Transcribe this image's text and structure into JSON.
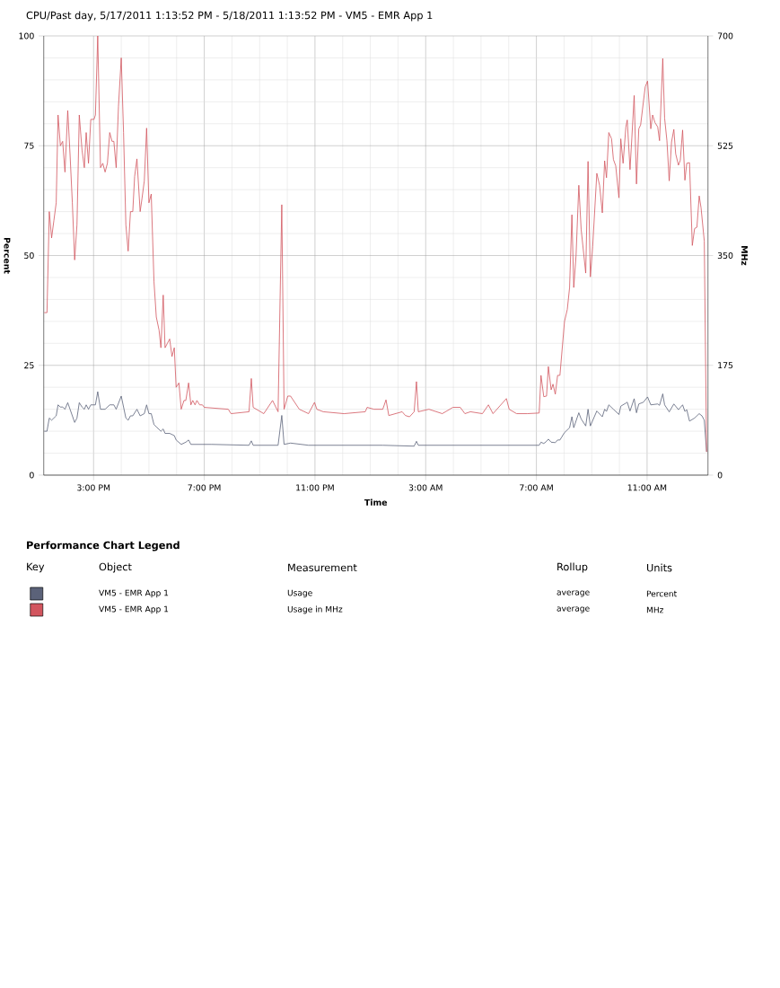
{
  "chart_data": {
    "type": "line",
    "title": "CPU/Past day, 5/17/2011 1:13:52 PM - 5/18/2011 1:13:52 PM - VM5 - EMR App 1",
    "xlabel": "Time",
    "ylabel": "Percent",
    "y2label": "MHz",
    "legend_title": "Performance Chart Legend",
    "xlim": [
      "2011-05-17T13:12",
      "2011-05-18T13:12"
    ],
    "xticks": [
      {
        "value": "2011-05-17T15:00",
        "label": "3:00 PM"
      },
      {
        "value": "2011-05-17T19:00",
        "label": "7:00 PM"
      },
      {
        "value": "2011-05-17T23:00",
        "label": "11:00 PM"
      },
      {
        "value": "2011-05-18T03:00",
        "label": "3:00 AM"
      },
      {
        "value": "2011-05-18T07:00",
        "label": "7:00 AM"
      },
      {
        "value": "2011-05-18T11:00",
        "label": "11:00 AM"
      }
    ],
    "ylim": [
      0,
      100
    ],
    "yticks": [
      0,
      25,
      50,
      75,
      100
    ],
    "y2lim": [
      0,
      700
    ],
    "y2ticks": [
      0,
      175,
      350,
      525,
      700
    ],
    "grid": true,
    "series": [
      {
        "color": "#5b6279",
        "x": [
          "2011-05-17T13:13",
          "2011-05-17T13:19",
          "2011-05-17T13:24",
          "2011-05-17T13:29",
          "2011-05-17T13:39",
          "2011-05-17T13:43",
          "2011-05-17T13:48",
          "2011-05-17T13:53",
          "2011-05-17T13:58",
          "2011-05-17T14:04",
          "2011-05-17T14:09",
          "2011-05-17T14:19",
          "2011-05-17T14:24",
          "2011-05-17T14:29",
          "2011-05-17T14:35",
          "2011-05-17T14:40",
          "2011-05-17T14:44",
          "2011-05-17T14:49",
          "2011-05-17T14:54",
          "2011-05-17T15:04",
          "2011-05-17T15:09",
          "2011-05-17T15:15",
          "2011-05-17T15:25",
          "2011-05-17T15:35",
          "2011-05-17T15:44",
          "2011-05-17T15:49",
          "2011-05-17T16:00",
          "2011-05-17T16:10",
          "2011-05-17T16:15",
          "2011-05-17T16:20",
          "2011-05-17T16:25",
          "2011-05-17T16:34",
          "2011-05-17T16:41",
          "2011-05-17T16:50",
          "2011-05-17T16:55",
          "2011-05-17T17:00",
          "2011-05-17T17:05",
          "2011-05-17T17:11",
          "2011-05-17T17:16",
          "2011-05-17T17:26",
          "2011-05-17T17:31",
          "2011-05-17T17:35",
          "2011-05-17T17:45",
          "2011-05-17T17:55",
          "2011-05-17T17:59",
          "2011-05-17T18:10",
          "2011-05-17T18:20",
          "2011-05-17T18:26",
          "2011-05-17T18:31",
          "2011-05-17T18:50",
          "2011-05-17T19:16",
          "2011-05-17T20:37",
          "2011-05-17T20:42",
          "2011-05-17T20:46",
          "2011-05-17T21:40",
          "2011-05-17T21:48",
          "2011-05-17T21:53",
          "2011-05-17T22:07",
          "2011-05-17T22:46",
          "2011-05-18T01:27",
          "2011-05-18T02:35",
          "2011-05-18T02:40",
          "2011-05-18T02:44",
          "2011-05-18T07:06",
          "2011-05-18T07:10",
          "2011-05-18T07:16",
          "2011-05-18T07:22",
          "2011-05-18T07:26",
          "2011-05-18T07:32",
          "2011-05-18T07:41",
          "2011-05-18T07:46",
          "2011-05-18T07:51",
          "2011-05-18T08:01",
          "2011-05-18T08:12",
          "2011-05-18T08:17",
          "2011-05-18T08:21",
          "2011-05-18T08:32",
          "2011-05-18T08:37",
          "2011-05-18T08:47",
          "2011-05-18T08:52",
          "2011-05-18T08:57",
          "2011-05-18T09:11",
          "2011-05-18T09:23",
          "2011-05-18T09:28",
          "2011-05-18T09:32",
          "2011-05-18T09:37",
          "2011-05-18T09:47",
          "2011-05-18T09:59",
          "2011-05-18T10:03",
          "2011-05-18T10:14",
          "2011-05-18T10:17",
          "2011-05-18T10:23",
          "2011-05-18T10:32",
          "2011-05-18T10:37",
          "2011-05-18T10:42",
          "2011-05-18T10:52",
          "2011-05-18T11:01",
          "2011-05-18T11:08",
          "2011-05-18T11:23",
          "2011-05-18T11:27",
          "2011-05-18T11:34",
          "2011-05-18T11:38",
          "2011-05-18T11:48",
          "2011-05-18T11:58",
          "2011-05-18T12:08",
          "2011-05-18T12:17",
          "2011-05-18T12:22",
          "2011-05-18T12:26",
          "2011-05-18T12:32",
          "2011-05-18T12:43",
          "2011-05-18T12:53",
          "2011-05-18T12:59",
          "2011-05-18T13:04",
          "2011-05-18T13:09"
        ],
        "values": [
          10,
          10,
          13,
          12.5,
          13.5,
          16,
          15.5,
          15.5,
          15,
          16.5,
          15,
          12,
          13,
          16.5,
          15.5,
          15,
          16,
          15,
          16,
          16,
          19,
          15,
          15,
          16,
          16,
          15,
          18,
          13,
          12.5,
          13.5,
          13.5,
          15,
          13.5,
          14,
          16,
          14,
          14,
          11.5,
          11,
          10,
          10.5,
          9.5,
          9.5,
          9,
          8,
          7,
          7.5,
          8,
          7,
          7,
          7,
          6.8,
          7.8,
          6.8,
          6.8,
          13.6,
          7,
          7.3,
          6.8,
          6.8,
          6.6,
          7.7,
          6.8,
          6.8,
          7.5,
          7.2,
          7.7,
          8.2,
          7.5,
          7.4,
          8,
          8,
          9.7,
          10.8,
          13.3,
          10.8,
          14.2,
          12.8,
          11.2,
          15,
          11.2,
          14.6,
          13.3,
          15,
          14.5,
          16,
          15,
          13.8,
          15.7,
          16.4,
          16.6,
          14.6,
          17.4,
          14.2,
          16.2,
          16.6,
          17.8,
          16,
          16.2,
          15.9,
          18.5,
          16,
          14.4,
          16.2,
          14.9,
          16,
          14.5,
          14.9,
          12.3,
          13,
          14,
          13.5,
          12.5,
          5.3
        ]
      },
      {
        "color": "#d2555e",
        "axis": "y2",
        "x": [
          "2011-05-17T13:13",
          "2011-05-17T13:19",
          "2011-05-17T13:24",
          "2011-05-17T13:29",
          "2011-05-17T13:34",
          "2011-05-17T13:39",
          "2011-05-17T13:43",
          "2011-05-17T13:48",
          "2011-05-17T13:53",
          "2011-05-17T13:58",
          "2011-05-17T14:04",
          "2011-05-17T14:09",
          "2011-05-17T14:14",
          "2011-05-17T14:19",
          "2011-05-17T14:24",
          "2011-05-17T14:29",
          "2011-05-17T14:35",
          "2011-05-17T14:40",
          "2011-05-17T14:44",
          "2011-05-17T14:49",
          "2011-05-17T14:54",
          "2011-05-17T15:01",
          "2011-05-17T15:04",
          "2011-05-17T15:09",
          "2011-05-17T15:15",
          "2011-05-17T15:20",
          "2011-05-17T15:25",
          "2011-05-17T15:30",
          "2011-05-17T15:35",
          "2011-05-17T15:40",
          "2011-05-17T15:44",
          "2011-05-17T15:49",
          "2011-05-17T15:54",
          "2011-05-17T16:00",
          "2011-05-17T16:05",
          "2011-05-17T16:10",
          "2011-05-17T16:15",
          "2011-05-17T16:20",
          "2011-05-17T16:25",
          "2011-05-17T16:29",
          "2011-05-17T16:34",
          "2011-05-17T16:41",
          "2011-05-17T16:45",
          "2011-05-17T16:50",
          "2011-05-17T16:55",
          "2011-05-17T17:00",
          "2011-05-17T17:05",
          "2011-05-17T17:11",
          "2011-05-17T17:16",
          "2011-05-17T17:22",
          "2011-05-17T17:26",
          "2011-05-17T17:31",
          "2011-05-17T17:35",
          "2011-05-17T17:40",
          "2011-05-17T17:45",
          "2011-05-17T17:50",
          "2011-05-17T17:55",
          "2011-05-17T17:59",
          "2011-05-17T18:05",
          "2011-05-17T18:10",
          "2011-05-17T18:16",
          "2011-05-17T18:20",
          "2011-05-17T18:26",
          "2011-05-17T18:31",
          "2011-05-17T18:35",
          "2011-05-17T18:40",
          "2011-05-17T18:44",
          "2011-05-17T18:50",
          "2011-05-17T18:56",
          "2011-05-17T19:00",
          "2011-05-17T19:52",
          "2011-05-17T19:58",
          "2011-05-17T20:37",
          "2011-05-17T20:42",
          "2011-05-17T20:46",
          "2011-05-17T21:09",
          "2011-05-17T21:28",
          "2011-05-17T21:40",
          "2011-05-17T21:48",
          "2011-05-17T21:53",
          "2011-05-17T22:01",
          "2011-05-17T22:07",
          "2011-05-17T22:26",
          "2011-05-17T22:46",
          "2011-05-17T22:59",
          "2011-05-17T23:04",
          "2011-05-17T23:18",
          "2011-05-18T00:03",
          "2011-05-18T00:49",
          "2011-05-18T00:53",
          "2011-05-18T01:08",
          "2011-05-18T01:27",
          "2011-05-18T01:34",
          "2011-05-18T01:40",
          "2011-05-18T02:09",
          "2011-05-18T02:16",
          "2011-05-18T02:25",
          "2011-05-18T02:35",
          "2011-05-18T02:40",
          "2011-05-18T02:44",
          "2011-05-18T03:07",
          "2011-05-18T03:36",
          "2011-05-18T03:59",
          "2011-05-18T04:15",
          "2011-05-18T04:25",
          "2011-05-18T04:37",
          "2011-05-18T05:03",
          "2011-05-18T05:16",
          "2011-05-18T05:26",
          "2011-05-18T05:55",
          "2011-05-18T06:01",
          "2011-05-18T06:17",
          "2011-05-18T06:40",
          "2011-05-18T07:06",
          "2011-05-18T07:10",
          "2011-05-18T07:16",
          "2011-05-18T07:22",
          "2011-05-18T07:26",
          "2011-05-18T07:32",
          "2011-05-18T07:36",
          "2011-05-18T07:41",
          "2011-05-18T07:46",
          "2011-05-18T07:51",
          "2011-05-18T08:01",
          "2011-05-18T08:07",
          "2011-05-18T08:12",
          "2011-05-18T08:17",
          "2011-05-18T08:21",
          "2011-05-18T08:26",
          "2011-05-18T08:32",
          "2011-05-18T08:37",
          "2011-05-18T08:47",
          "2011-05-18T08:52",
          "2011-05-18T08:57",
          "2011-05-18T09:02",
          "2011-05-18T09:11",
          "2011-05-18T09:17",
          "2011-05-18T09:23",
          "2011-05-18T09:28",
          "2011-05-18T09:32",
          "2011-05-18T09:37",
          "2011-05-18T09:43",
          "2011-05-18T09:47",
          "2011-05-18T09:52",
          "2011-05-18T09:59",
          "2011-05-18T10:03",
          "2011-05-18T10:08",
          "2011-05-18T10:14",
          "2011-05-18T10:17",
          "2011-05-18T10:23",
          "2011-05-18T10:27",
          "2011-05-18T10:32",
          "2011-05-18T10:37",
          "2011-05-18T10:42",
          "2011-05-18T10:46",
          "2011-05-18T10:52",
          "2011-05-18T10:56",
          "2011-05-18T11:01",
          "2011-05-18T11:08",
          "2011-05-18T11:12",
          "2011-05-18T11:17",
          "2011-05-18T11:23",
          "2011-05-18T11:27",
          "2011-05-18T11:34",
          "2011-05-18T11:38",
          "2011-05-18T11:43",
          "2011-05-18T11:48",
          "2011-05-18T11:53",
          "2011-05-18T11:58",
          "2011-05-18T12:02",
          "2011-05-18T12:08",
          "2011-05-18T12:12",
          "2011-05-18T12:17",
          "2011-05-18T12:22",
          "2011-05-18T12:26",
          "2011-05-18T12:32",
          "2011-05-18T12:38",
          "2011-05-18T12:43",
          "2011-05-18T12:48",
          "2011-05-18T12:53",
          "2011-05-18T12:57",
          "2011-05-18T13:04",
          "2011-05-18T13:09"
        ],
        "values": [
          259,
          259,
          420,
          378,
          406,
          434,
          574,
          525,
          532,
          483,
          581,
          511,
          434,
          343,
          399,
          574,
          518,
          490,
          546,
          497,
          567,
          567,
          574,
          700,
          490,
          497,
          483,
          497,
          546,
          532,
          532,
          490,
          588,
          665,
          546,
          399,
          357,
          420,
          420,
          476,
          504,
          420,
          441,
          469,
          553,
          434,
          448,
          308,
          252,
          231,
          203,
          287,
          203,
          210,
          217,
          189,
          203,
          140,
          147,
          105,
          119,
          119,
          147,
          112,
          119,
          112,
          119,
          112,
          112,
          108,
          105,
          98,
          101,
          154,
          108,
          98,
          119,
          101,
          431,
          105,
          126,
          126,
          105,
          98,
          116,
          105,
          101,
          98,
          101,
          108,
          105,
          105,
          120,
          95,
          101,
          95,
          93,
          101,
          149,
          101,
          105,
          98,
          108,
          108,
          98,
          101,
          98,
          112,
          98,
          122,
          105,
          98,
          98,
          99,
          159,
          125,
          126,
          173,
          136,
          145,
          129,
          159,
          159,
          245,
          264,
          299,
          415,
          299,
          350,
          462,
          392,
          322,
          500,
          316,
          364,
          481,
          462,
          418,
          501,
          474,
          546,
          536,
          503,
          493,
          442,
          536,
          497,
          555,
          566,
          487,
          538,
          605,
          464,
          552,
          558,
          595,
          619,
          628,
          552,
          574,
          562,
          555,
          533,
          664,
          569,
          533,
          469,
          531,
          551,
          512,
          494,
          502,
          550,
          470,
          497,
          498,
          366,
          393,
          395,
          445,
          426,
          373,
          37
        ]
      }
    ],
    "annotations": [
      "Key",
      "Object",
      "Measurement",
      "Rollup",
      "Units",
      "VM5 - EMR App 1",
      "Usage",
      "average",
      "Percent",
      "VM5 - EMR App 1",
      "Usage in MHz",
      "average",
      "MHz"
    ]
  }
}
